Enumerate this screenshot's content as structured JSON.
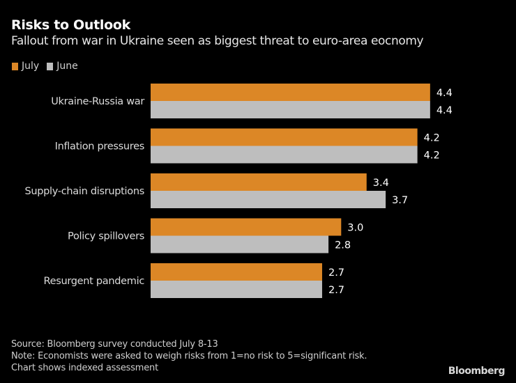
{
  "header": {
    "title": "Risks to Outlook",
    "subtitle": "Fallout from war in Ukraine seen as biggest threat to euro-area eocnomy"
  },
  "legend": [
    {
      "label": "July",
      "color": "#dc8726"
    },
    {
      "label": "June",
      "color": "#bebebe"
    }
  ],
  "chart_data": {
    "type": "bar",
    "orientation": "horizontal",
    "title": "Risks to Outlook",
    "subtitle": "Fallout from war in Ukraine seen as biggest threat to euro-area eocnomy",
    "categories": [
      "Ukraine-Russia war",
      "Inflation pressures",
      "Supply-chain disruptions",
      "Policy spillovers",
      "Resurgent pandemic"
    ],
    "series": [
      {
        "name": "July",
        "color": "#dc8726",
        "values": [
          4.4,
          4.2,
          3.4,
          3.0,
          2.7
        ],
        "labels": [
          "4.4",
          "4.2",
          "3.4",
          "3.0",
          "2.7"
        ]
      },
      {
        "name": "June",
        "color": "#bebebe",
        "values": [
          4.4,
          4.2,
          3.7,
          2.8,
          2.7
        ],
        "labels": [
          "4.4",
          "4.2",
          "3.7",
          "2.8",
          "2.7"
        ]
      }
    ],
    "xlabel": "",
    "ylabel": "",
    "xlim": [
      0,
      5
    ],
    "grid": false,
    "legend_position": "top-left"
  },
  "footer": {
    "source": "Source: Bloomberg survey conducted July 8-13",
    "note": "Note: Economists were asked to weigh risks from 1=no risk to 5=significant risk.",
    "note2": "Chart shows indexed assessment",
    "brand": "Bloomberg"
  }
}
